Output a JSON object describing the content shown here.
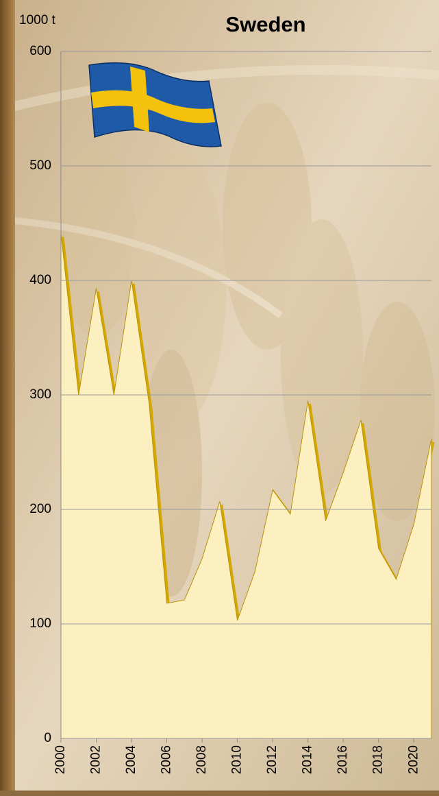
{
  "chart_data": {
    "type": "area",
    "title": "Sweden",
    "y_label": "1000 t",
    "x": [
      2000,
      2001,
      2002,
      2003,
      2004,
      2005,
      2006,
      2007,
      2008,
      2009,
      2010,
      2011,
      2012,
      2013,
      2014,
      2015,
      2016,
      2017,
      2018,
      2019,
      2020,
      2021
    ],
    "values": [
      441,
      300,
      393,
      300,
      400,
      292,
      118,
      121,
      157,
      207,
      103,
      146,
      217,
      196,
      295,
      190,
      232,
      278,
      166,
      139,
      187,
      262
    ],
    "color": "#fdf0c0",
    "line_color": "#d4a800",
    "xlim": [
      2000,
      2021
    ],
    "xticks": [
      2000,
      2002,
      2004,
      2006,
      2008,
      2010,
      2012,
      2014,
      2016,
      2018,
      2020
    ],
    "ylim": [
      0,
      600
    ],
    "yticks": [
      0,
      100,
      200,
      300,
      400,
      500,
      600
    ],
    "grid": true
  }
}
